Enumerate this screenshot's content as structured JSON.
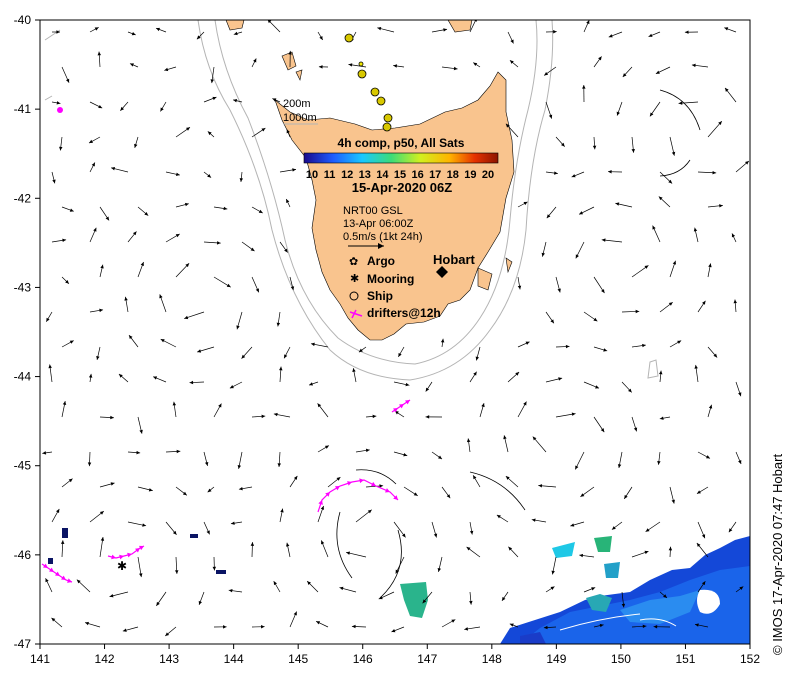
{
  "map": {
    "lon_range": [
      141,
      152
    ],
    "lat_range": [
      -47,
      -40
    ],
    "x_ticks": [
      "141",
      "142",
      "143",
      "144",
      "145",
      "146",
      "147",
      "148",
      "149",
      "150",
      "151",
      "152"
    ],
    "y_ticks": [
      "-40",
      "-41",
      "-42",
      "-43",
      "-44",
      "-45",
      "-46",
      "-47"
    ],
    "land_color": "#f9c48e",
    "isobath_color": "#b4b4b4",
    "arrow_color": "#000000",
    "drifter_color": "#ff00ff"
  },
  "legend": {
    "isobath_200": "200m",
    "isobath_1000": "1000m",
    "composite_title": "4h comp, p50, All Sats",
    "colorbar_labels": [
      "10",
      "11",
      "12",
      "13",
      "14",
      "15",
      "16",
      "17",
      "18",
      "19",
      "20"
    ],
    "sst_date": "15-Apr-2020 06Z",
    "current_source": "NRT00 GSL",
    "current_time": "13-Apr 06:00Z",
    "scale_label": "0.5m/s (1kt 24h)",
    "city": "Hobart",
    "argo_label": "Argo",
    "mooring_label": "Mooring",
    "ship_label": "Ship",
    "drifters_label": "drifters@12h"
  },
  "credit": "© IMOS 17-Apr-2020 07:47 Hobart"
}
